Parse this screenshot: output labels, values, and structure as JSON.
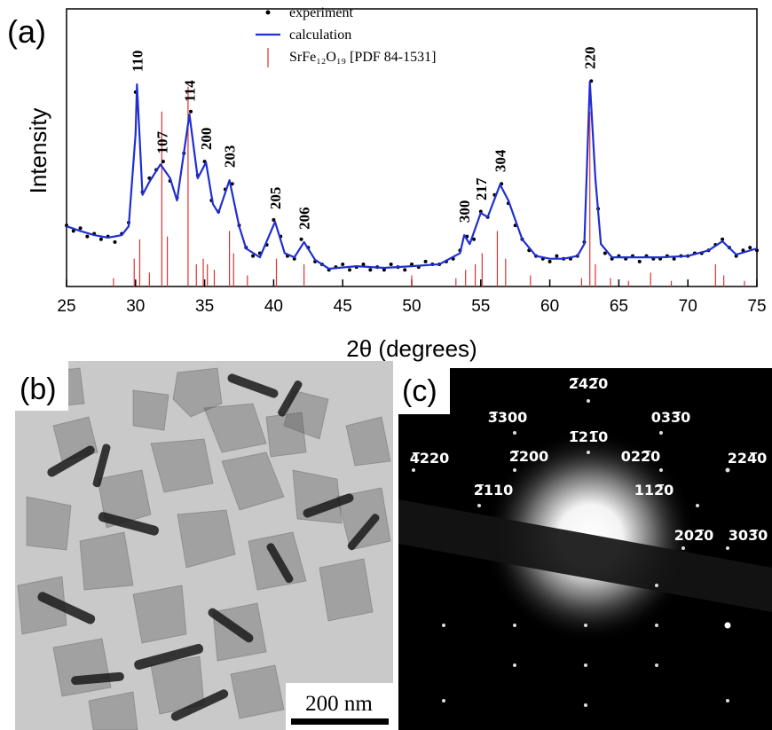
{
  "chart_data": {
    "type": "line",
    "xlabel": "2θ (degrees)",
    "ylabel": "Intensity",
    "xlim": [
      25,
      75
    ],
    "xticks": [
      25,
      30,
      35,
      40,
      45,
      50,
      55,
      60,
      65,
      70,
      75
    ],
    "ylim": [
      0,
      100
    ],
    "grid": false,
    "legend": "top",
    "series": [
      {
        "name": "experiment",
        "type": "scatter",
        "color": "#000000",
        "x": [
          25,
          25.5,
          26,
          26.5,
          27,
          27.5,
          28,
          28.5,
          29,
          29.5,
          30,
          30.5,
          31,
          31.5,
          32,
          32.5,
          33,
          33.5,
          34,
          34.5,
          35,
          35.5,
          36,
          36.5,
          37,
          37.5,
          38,
          38.5,
          39,
          39.5,
          40,
          40.5,
          41,
          41.5,
          42,
          42.5,
          43,
          43.5,
          44,
          44.5,
          45,
          45.5,
          46,
          46.5,
          47,
          47.5,
          48,
          48.5,
          49,
          49.5,
          50,
          50.5,
          51,
          51.5,
          52,
          52.5,
          53,
          53.5,
          54,
          54.5,
          55,
          55.5,
          56,
          56.5,
          57,
          57.5,
          58,
          58.5,
          59,
          59.5,
          60,
          60.5,
          61,
          61.5,
          62,
          62.5,
          63,
          63.5,
          64,
          64.5,
          65,
          65.5,
          66,
          66.5,
          67,
          67.5,
          68,
          68.5,
          69,
          69.5,
          70,
          70.5,
          71,
          71.5,
          72,
          72.5,
          73,
          73.5,
          74,
          74.5,
          75
        ],
        "values": [
          22,
          20,
          21,
          18,
          19,
          17,
          18,
          16,
          19,
          23,
          70,
          34,
          39,
          42,
          45,
          38,
          32,
          48,
          63,
          40,
          45,
          31,
          27,
          35,
          37,
          22,
          14,
          11,
          12,
          15,
          24,
          18,
          11,
          10,
          17,
          14,
          9,
          8,
          6,
          7,
          8,
          6,
          7,
          8,
          6,
          7,
          6,
          8,
          7,
          6,
          8,
          7,
          9,
          8,
          8,
          9,
          10,
          13,
          18,
          17,
          27,
          25,
          33,
          37,
          30,
          22,
          17,
          13,
          11,
          10,
          9,
          11,
          10,
          10,
          11,
          16,
          74,
          28,
          12,
          10,
          11,
          10,
          11,
          9,
          11,
          10,
          10,
          11,
          10,
          11,
          11,
          12,
          12,
          13,
          15,
          17,
          14,
          11,
          13,
          14,
          13
        ]
      },
      {
        "name": "calculation",
        "type": "line",
        "color": "#1f2fd0",
        "x": [
          25,
          26,
          27,
          28,
          29,
          29.5,
          30,
          30.1,
          30.5,
          31,
          31.8,
          32.5,
          33,
          33.9,
          34.5,
          35.1,
          35.6,
          36,
          36.8,
          37.5,
          38,
          39,
          40.1,
          40.8,
          41.5,
          42.2,
          43,
          44,
          46,
          48,
          50,
          52,
          53.5,
          53.8,
          54.2,
          55,
          55.5,
          56.4,
          57,
          58,
          59,
          60,
          61,
          62,
          62.5,
          62.9,
          63.3,
          63.7,
          64.5,
          66,
          68,
          70,
          71.5,
          72.5,
          73.5,
          75
        ],
        "values": [
          21.7,
          20,
          18.5,
          17.6,
          18.5,
          21.7,
          55,
          72.8,
          33,
          37.7,
          44,
          39,
          31,
          62,
          39,
          44.7,
          29.7,
          26.5,
          38.3,
          21.7,
          13.7,
          10.5,
          23.3,
          12,
          10.5,
          16,
          9.6,
          6.4,
          7.3,
          6.7,
          7.3,
          8,
          12,
          18.5,
          15.3,
          26.5,
          25,
          36.7,
          31,
          17,
          11,
          10,
          10,
          11,
          15.3,
          73.8,
          39,
          15.3,
          10.5,
          10.5,
          10.5,
          11,
          13,
          16.3,
          11.5,
          13.7
        ]
      },
      {
        "name": "SrFe₁₂O₁₉ [PDF 84-1531]",
        "type": "stick",
        "color": "#e03030",
        "x": [
          28.4,
          29.9,
          30.3,
          31.0,
          31.9,
          32.3,
          33.8,
          34.4,
          34.9,
          35.2,
          35.7,
          36.8,
          37.1,
          38.1,
          40.2,
          42.2,
          50.0,
          53.2,
          53.9,
          54.6,
          55.1,
          56.2,
          56.8,
          58.6,
          62.3,
          62.9,
          63.3,
          64.4,
          65.7,
          67.3,
          68.8,
          72.0,
          72.6,
          74.1
        ],
        "values": [
          3,
          10,
          17,
          5,
          63,
          18,
          72,
          8,
          10,
          8,
          6,
          20,
          12,
          4,
          10,
          8,
          4,
          3,
          6,
          8,
          12,
          20,
          10,
          4,
          3,
          63,
          8,
          3,
          2,
          5,
          2,
          8,
          4,
          2
        ]
      }
    ],
    "annotations": [
      {
        "text": "110",
        "x": 30.1
      },
      {
        "text": "107",
        "x": 31.9
      },
      {
        "text": "114",
        "x": 33.9
      },
      {
        "text": "200",
        "x": 35.1
      },
      {
        "text": "203",
        "x": 36.8
      },
      {
        "text": "205",
        "x": 40.1
      },
      {
        "text": "206",
        "x": 42.2
      },
      {
        "text": "300",
        "x": 53.8
      },
      {
        "text": "217",
        "x": 55.0
      },
      {
        "text": "304",
        "x": 56.4
      },
      {
        "text": "220",
        "x": 62.9
      }
    ]
  },
  "panels": {
    "a": "(a)",
    "b": "(b)",
    "c": "(c)"
  },
  "tem": {
    "scale_bar": "200 nm"
  },
  "saed": {
    "labels": [
      "2̅42̅0",
      "3̅300",
      "033̅0",
      "1̅21̅0",
      "4̅220",
      "2̅200",
      "022̅0",
      "224̅0",
      "2̅110",
      "112̅0",
      "202̅0",
      "303̅0"
    ]
  }
}
